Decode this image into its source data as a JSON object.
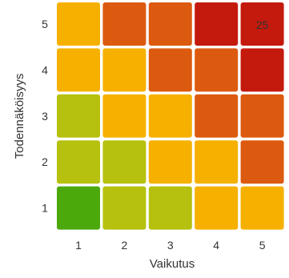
{
  "chart_data": {
    "type": "heatmap",
    "title": "",
    "xlabel": "Vaikutus",
    "ylabel": "Todennäköisyys",
    "x_categories": [
      "1",
      "2",
      "3",
      "4",
      "5"
    ],
    "y_categories": [
      "1",
      "2",
      "3",
      "4",
      "5"
    ],
    "levels": {
      "green": "#4ca90c",
      "yellow_green": "#b5c10e",
      "amber": "#f6b100",
      "orange": "#dc5a0f",
      "red": "#c41a0d"
    },
    "rows": [
      {
        "y": "5",
        "cells": [
          "amber",
          "orange",
          "orange",
          "red",
          "red"
        ]
      },
      {
        "y": "4",
        "cells": [
          "amber",
          "amber",
          "orange",
          "orange",
          "red"
        ]
      },
      {
        "y": "3",
        "cells": [
          "yellow_green",
          "amber",
          "amber",
          "orange",
          "orange"
        ]
      },
      {
        "y": "2",
        "cells": [
          "yellow_green",
          "yellow_green",
          "amber",
          "amber",
          "orange"
        ]
      },
      {
        "y": "1",
        "cells": [
          "green",
          "yellow_green",
          "yellow_green",
          "amber",
          "amber"
        ]
      }
    ],
    "annotations": [
      {
        "x": "5",
        "y": "5",
        "text": "25"
      }
    ],
    "grid": false,
    "legend": "none"
  }
}
